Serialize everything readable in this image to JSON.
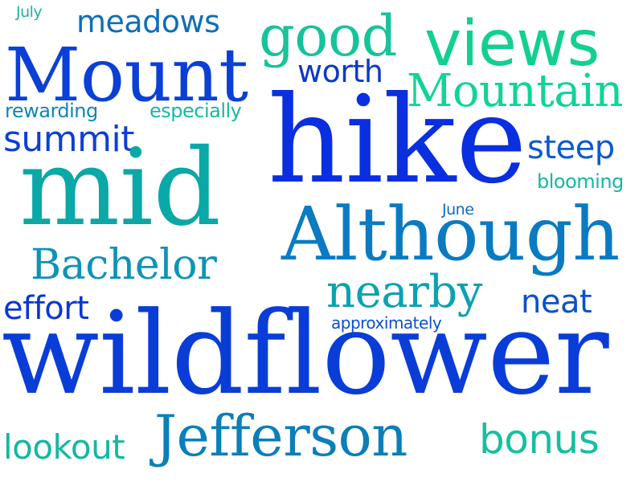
{
  "words": [
    {
      "text": "July",
      "color": "#1fb59a"
    },
    {
      "text": "meadows",
      "color": "#0e6fb8"
    },
    {
      "text": "good",
      "color": "#16c39a"
    },
    {
      "text": "views",
      "color": "#12d08f"
    },
    {
      "text": "Mount",
      "color": "#0b3fd6"
    },
    {
      "text": "worth",
      "color": "#0b3ac8"
    },
    {
      "text": "Mountain",
      "color": "#12d39a"
    },
    {
      "text": "rewarding",
      "color": "#0e86b5"
    },
    {
      "text": "especially",
      "color": "#17b8a2"
    },
    {
      "text": "summit",
      "color": "#0b3fd6"
    },
    {
      "text": "hike",
      "color": "#0a2fe0"
    },
    {
      "text": "steep",
      "color": "#0b5ad0"
    },
    {
      "text": "mid",
      "color": "#0aa8a6"
    },
    {
      "text": "blooming",
      "color": "#13b8a4"
    },
    {
      "text": "June",
      "color": "#0d6ac6"
    },
    {
      "text": "Although",
      "color": "#0a7bc2"
    },
    {
      "text": "Bachelor",
      "color": "#0e93b8"
    },
    {
      "text": "nearby",
      "color": "#0aa2b0"
    },
    {
      "text": "effort",
      "color": "#0b36d6"
    },
    {
      "text": "neat",
      "color": "#0b52c8"
    },
    {
      "text": "approximately",
      "color": "#0b4fd0"
    },
    {
      "text": "wildflower",
      "color": "#0a3dd8"
    },
    {
      "text": "lookout",
      "color": "#16b7a0"
    },
    {
      "text": "Jefferson",
      "color": "#0a7fb8"
    },
    {
      "text": "bonus",
      "color": "#16bfa0"
    }
  ]
}
